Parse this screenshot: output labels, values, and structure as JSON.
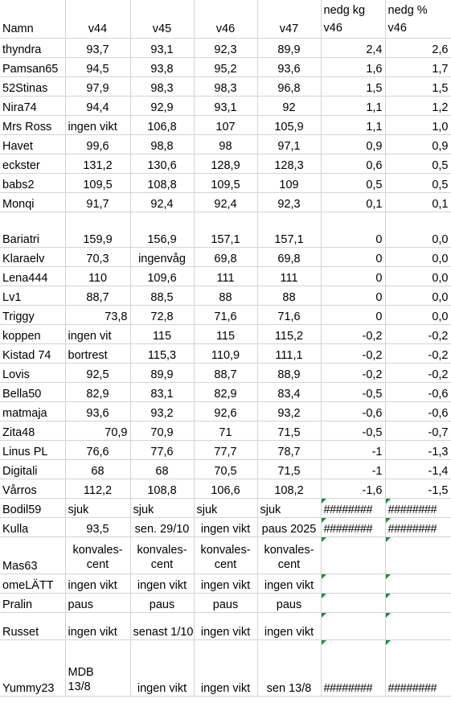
{
  "header": {
    "name": "Namn",
    "v44": "v44",
    "v45": "v45",
    "v46": "v46",
    "v47": "v47",
    "nedg_kg": "nedg kg v46",
    "nedg_pct": "nedg % v46"
  },
  "rows": [
    {
      "name": "thyndra",
      "v44": "93,7",
      "v45": "93,1",
      "v46": "92,3",
      "v47": "89,9",
      "kg": "2,4",
      "pct": "2,6"
    },
    {
      "name": "Pamsan65",
      "v44": "94,5",
      "v45": "93,8",
      "v46": "95,2",
      "v47": "93,6",
      "kg": "1,6",
      "pct": "1,7"
    },
    {
      "name": "52Stinas",
      "v44": "97,9",
      "v45": "98,3",
      "v46": "98,3",
      "v47": "96,8",
      "kg": "1,5",
      "pct": "1,5"
    },
    {
      "name": "Nira74",
      "v44": "94,4",
      "v45": "92,9",
      "v46": "93,1",
      "v47": "92",
      "kg": "1,1",
      "pct": "1,2"
    },
    {
      "name": "Mrs Ross",
      "v44": "ingen vikt",
      "v45": "106,8",
      "v46": "107",
      "v47": "105,9",
      "kg": "1,1",
      "pct": "1,0"
    },
    {
      "name": "Havet",
      "v44": "99,6",
      "v45": "98,8",
      "v46": "98",
      "v47": "97,1",
      "kg": "0,9",
      "pct": "0,9"
    },
    {
      "name": "eckster",
      "v44": "131,2",
      "v45": "130,6",
      "v46": "128,9",
      "v47": "128,3",
      "kg": "0,6",
      "pct": "0,5"
    },
    {
      "name": "babs2",
      "v44": "109,5",
      "v45": "108,8",
      "v46": "109,5",
      "v47": "109",
      "kg": "0,5",
      "pct": "0,5"
    },
    {
      "name": "Monqi",
      "v44": "91,7",
      "v45": "92,4",
      "v46": "92,4",
      "v47": "92,3",
      "kg": "0,1",
      "pct": "0,1"
    },
    {
      "name": "Bariatri",
      "v44": "159,9",
      "v45": "156,9",
      "v46": "157,1",
      "v47": "157,1",
      "kg": "0",
      "pct": "0,0"
    },
    {
      "name": "Klaraelv",
      "v44": "70,3",
      "v45": "ingenvåg",
      "v46": "69,8",
      "v47": "69,8",
      "kg": "0",
      "pct": "0,0"
    },
    {
      "name": "Lena444",
      "v44": "110",
      "v45": "109,6",
      "v46": "111",
      "v47": "111",
      "kg": "0",
      "pct": "0,0"
    },
    {
      "name": "Lv1",
      "v44": "88,7",
      "v45": "88,5",
      "v46": "88",
      "v47": "88",
      "kg": "0",
      "pct": "0,0"
    },
    {
      "name": "Triggy",
      "v44": "73,8",
      "v45": "72,8",
      "v46": "71,6",
      "v47": "71,6",
      "kg": "0",
      "pct": "0,0"
    },
    {
      "name": "koppen",
      "v44": "ingen vit",
      "v45": "115",
      "v46": "115",
      "v47": "115,2",
      "kg": "-0,2",
      "pct": "-0,2"
    },
    {
      "name": "Kistad 74",
      "v44": "bortrest",
      "v45": "115,3",
      "v46": "110,9",
      "v47": "111,1",
      "kg": "-0,2",
      "pct": "-0,2"
    },
    {
      "name": "Lovis",
      "v44": "92,5",
      "v45": "89,9",
      "v46": "88,7",
      "v47": "88,9",
      "kg": "-0,2",
      "pct": "-0,2"
    },
    {
      "name": "Bella50",
      "v44": "82,9",
      "v45": "83,1",
      "v46": "82,9",
      "v47": "83,4",
      "kg": "-0,5",
      "pct": "-0,6"
    },
    {
      "name": "matmaja",
      "v44": "93,6",
      "v45": "93,2",
      "v46": "92,6",
      "v47": "93,2",
      "kg": "-0,6",
      "pct": "-0,6"
    },
    {
      "name": "Zita48",
      "v44": "70,9",
      "v45": "70,9",
      "v46": "71",
      "v47": "71,5",
      "kg": "-0,5",
      "pct": "-0,7"
    },
    {
      "name": "Linus PL",
      "v44": "76,6",
      "v45": "77,6",
      "v46": "77,7",
      "v47": "78,7",
      "kg": "-1",
      "pct": "-1,3"
    },
    {
      "name": "Digitali",
      "v44": "68",
      "v45": "68",
      "v46": "70,5",
      "v47": "71,5",
      "kg": "-1",
      "pct": "-1,4"
    },
    {
      "name": "Vårros",
      "v44": "112,2",
      "v45": "108,8",
      "v46": "106,6",
      "v47": "108,2",
      "kg": "-1,6",
      "pct": "-1,5"
    },
    {
      "name": "Bodil59",
      "v44": "sjuk",
      "v45": "sjuk",
      "v46": "sjuk",
      "v47": "sjuk",
      "kg": "########",
      "pct": "########"
    },
    {
      "name": "Kulla",
      "v44": "93,5",
      "v45": "sen. 29/10",
      "v46": "ingen vikt",
      "v47": "paus 2025",
      "kg": "########",
      "pct": "########"
    },
    {
      "name": "Mas63",
      "v44": "konvales-cent",
      "v45": "konvales-cent",
      "v46": "konvales-cent",
      "v47": "konvales-cent",
      "kg": "",
      "pct": ""
    },
    {
      "name": "omeLÄTT",
      "v44": "ingen vikt",
      "v45": "ingen vikt",
      "v46": "ingen vikt",
      "v47": "ingen vikt",
      "kg": "",
      "pct": ""
    },
    {
      "name": "Pralin",
      "v44": "paus",
      "v45": "paus",
      "v46": "paus",
      "v47": "paus",
      "kg": "",
      "pct": ""
    },
    {
      "name": "Russet",
      "v44": "ingen vikt",
      "v45": "senast 1/10",
      "v46": "ingen vikt",
      "v47": "ingen vikt",
      "kg": "",
      "pct": ""
    },
    {
      "name": "Yummy23",
      "v44": "MDB 13/8",
      "v45": "ingen vikt",
      "v46": "ingen vikt",
      "v47": "sen 13/8",
      "kg": "########",
      "pct": "########"
    }
  ],
  "colors": {
    "grid": "#d4d4d4",
    "error_marker": "#1e8a3a"
  }
}
